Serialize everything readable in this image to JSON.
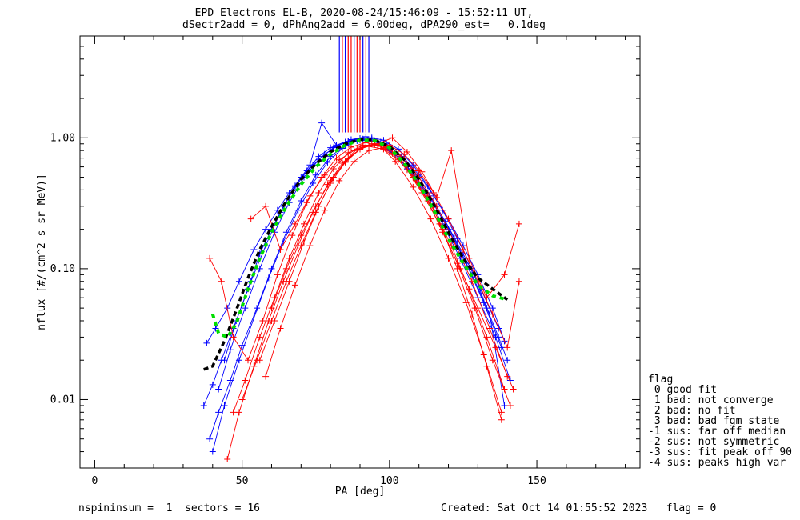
{
  "title": "EPD Electrons EL-B, 2020-08-24/15:46:09 - 15:52:11 UT,",
  "subtitle": "dSectr2add = 0, dPhAng2add = 6.00deg, dPA290_est=   0.1deg",
  "footer": {
    "left": "nspininsum =  1  sectors = 16",
    "right": "Created: Sat Oct 14 01:55:52 2023   flag = 0"
  },
  "flag_legend": {
    "title": "flag",
    "items": [
      " 0 good fit",
      " 1 bad: not converge",
      " 2 bad: no fit",
      " 3 bad: bad fgm state",
      "-1 sus: far off median",
      "-2 sus: not symmetric",
      "-3 sus: fit peak off 90",
      "-4 sus: peaks high var"
    ]
  },
  "chart_data": {
    "type": "line",
    "title": "EPD Electrons EL-B, 2020-08-24/15:46:09 - 15:52:11 UT,",
    "xlabel": "PA [deg]",
    "ylabel": "nflux [#/(cm^2 s sr MeV)]",
    "xlim": [
      -5,
      185
    ],
    "ylim": [
      0.003,
      6
    ],
    "yscale": "log",
    "x_ticks": [
      0,
      50,
      100,
      150
    ],
    "x_tick_labels": [
      "0",
      "50",
      "100",
      "150"
    ],
    "y_ticks": [
      0.01,
      0.1,
      1.0
    ],
    "y_tick_labels": [
      "0.01",
      "0.10",
      "1.00"
    ],
    "series": [
      {
        "color": "#0000ff",
        "x": [
          37,
          40,
          43,
          47,
          52,
          56,
          60,
          64,
          68,
          72,
          76,
          80,
          85,
          90,
          94,
          98,
          103,
          108,
          113,
          118,
          123,
          128,
          133,
          137,
          140
        ],
        "y": [
          0.009,
          0.013,
          0.02,
          0.035,
          0.07,
          0.13,
          0.2,
          0.3,
          0.42,
          0.56,
          0.72,
          0.84,
          0.93,
          0.99,
          1.0,
          0.96,
          0.82,
          0.62,
          0.43,
          0.28,
          0.17,
          0.1,
          0.05,
          0.03,
          0.02
        ]
      },
      {
        "color": "#0000ff",
        "x": [
          38,
          41,
          45,
          49,
          54,
          58,
          62,
          66,
          70,
          74,
          78,
          82,
          86,
          90,
          95,
          100,
          105,
          110,
          115,
          120,
          125,
          130,
          135,
          139
        ],
        "y": [
          0.027,
          0.035,
          0.05,
          0.08,
          0.14,
          0.2,
          0.28,
          0.38,
          0.5,
          0.62,
          0.75,
          0.86,
          0.94,
          0.97,
          0.95,
          0.86,
          0.7,
          0.52,
          0.36,
          0.24,
          0.15,
          0.09,
          0.05,
          0.028
        ]
      },
      {
        "color": "#0000ff",
        "x": [
          39,
          42,
          46,
          50,
          55,
          60,
          65,
          70,
          75,
          80,
          85,
          90,
          95,
          100,
          106,
          112,
          118,
          124,
          130,
          136,
          141
        ],
        "y": [
          0.005,
          0.008,
          0.014,
          0.026,
          0.05,
          0.1,
          0.19,
          0.33,
          0.52,
          0.72,
          0.88,
          0.96,
          0.94,
          0.8,
          0.58,
          0.38,
          0.22,
          0.12,
          0.06,
          0.03,
          0.014
        ]
      },
      {
        "color": "#0000ff",
        "x": [
          44,
          48,
          53,
          58,
          63,
          68,
          73,
          77,
          82,
          87,
          92,
          97,
          102,
          108,
          114,
          120,
          126,
          132,
          138
        ],
        "y": [
          0.02,
          0.04,
          0.08,
          0.15,
          0.27,
          0.43,
          0.62,
          1.3,
          0.88,
          0.97,
          1.02,
          0.93,
          0.75,
          0.52,
          0.34,
          0.2,
          0.11,
          0.055,
          0.025
        ]
      },
      {
        "color": "#0000ff",
        "x": [
          40,
          44,
          49,
          54,
          59,
          64,
          69,
          74,
          79,
          84,
          89,
          94,
          99,
          104,
          110,
          116,
          122,
          128,
          134,
          139
        ],
        "y": [
          0.004,
          0.009,
          0.02,
          0.042,
          0.085,
          0.16,
          0.28,
          0.45,
          0.65,
          0.83,
          0.95,
          0.98,
          0.9,
          0.72,
          0.5,
          0.3,
          0.17,
          0.09,
          0.045,
          0.009
        ]
      },
      {
        "color": "#0000ff",
        "x": [
          42,
          46,
          51,
          56,
          61,
          66,
          71,
          76,
          81,
          86,
          91,
          96,
          101,
          107,
          113,
          119,
          125,
          131,
          137
        ],
        "y": [
          0.012,
          0.024,
          0.05,
          0.1,
          0.19,
          0.32,
          0.5,
          0.68,
          0.84,
          0.94,
          0.98,
          0.93,
          0.78,
          0.57,
          0.38,
          0.23,
          0.13,
          0.07,
          0.035
        ]
      },
      {
        "color": "#ff0000",
        "x": [
          39,
          43,
          47,
          52,
          57,
          62,
          67,
          72,
          77,
          82,
          87,
          92,
          97,
          102,
          108,
          114,
          120,
          126,
          132,
          138
        ],
        "y": [
          0.12,
          0.08,
          0.03,
          0.02,
          0.04,
          0.09,
          0.18,
          0.32,
          0.5,
          0.7,
          0.85,
          0.92,
          0.86,
          0.66,
          0.42,
          0.24,
          0.12,
          0.055,
          0.022,
          0.008
        ]
      },
      {
        "color": "#ff0000",
        "x": [
          45,
          49,
          54,
          59,
          64,
          69,
          74,
          79,
          84,
          89,
          94,
          99,
          104,
          109,
          115,
          121,
          127,
          133,
          139
        ],
        "y": [
          0.0035,
          0.008,
          0.018,
          0.04,
          0.08,
          0.15,
          0.27,
          0.44,
          0.64,
          0.82,
          0.9,
          0.85,
          0.68,
          0.47,
          0.28,
          0.15,
          0.07,
          0.03,
          0.012
        ]
      },
      {
        "color": "#ff0000",
        "x": [
          47,
          51,
          56,
          61,
          66,
          71,
          76,
          81,
          86,
          91,
          96,
          101,
          106,
          111,
          117,
          123,
          129,
          135,
          141
        ],
        "y": [
          0.008,
          0.014,
          0.03,
          0.06,
          0.12,
          0.22,
          0.38,
          0.58,
          0.77,
          0.88,
          0.88,
          0.76,
          0.57,
          0.38,
          0.22,
          0.11,
          0.05,
          0.02,
          0.009
        ]
      },
      {
        "color": "#ff0000",
        "x": [
          53,
          58,
          63,
          68,
          73,
          78,
          83,
          88,
          93,
          98,
          103,
          108,
          113,
          118,
          124,
          130,
          136,
          142
        ],
        "y": [
          0.24,
          0.3,
          0.14,
          0.22,
          0.36,
          0.52,
          0.68,
          0.8,
          0.86,
          0.82,
          0.68,
          0.5,
          0.33,
          0.19,
          0.1,
          0.05,
          0.025,
          0.012
        ]
      },
      {
        "color": "#ff0000",
        "x": [
          50,
          55,
          60,
          65,
          70,
          75,
          80,
          85,
          90,
          95,
          100,
          105,
          110,
          116,
          122,
          128,
          134,
          140
        ],
        "y": [
          0.01,
          0.02,
          0.04,
          0.08,
          0.15,
          0.27,
          0.45,
          0.65,
          0.82,
          0.9,
          0.85,
          0.7,
          0.5,
          0.3,
          0.16,
          0.08,
          0.035,
          0.015
        ]
      },
      {
        "color": "#ff0000",
        "x": [
          56,
          61,
          66,
          71,
          76,
          81,
          86,
          91,
          96,
          101,
          106,
          111,
          116,
          121,
          127,
          133,
          139,
          144
        ],
        "y": [
          0.02,
          0.04,
          0.08,
          0.16,
          0.3,
          0.5,
          0.7,
          0.85,
          0.9,
          1.0,
          0.78,
          0.55,
          0.35,
          0.8,
          0.12,
          0.06,
          0.09,
          0.22
        ]
      },
      {
        "color": "#ff0000",
        "x": [
          58,
          63,
          68,
          73,
          78,
          83,
          88,
          93,
          98,
          103,
          108,
          113,
          118,
          123,
          128,
          133,
          138
        ],
        "y": [
          0.015,
          0.035,
          0.075,
          0.15,
          0.28,
          0.47,
          0.66,
          0.8,
          0.84,
          0.75,
          0.56,
          0.36,
          0.2,
          0.1,
          0.045,
          0.018,
          0.007
        ]
      },
      {
        "color": "#ff0000",
        "x": [
          60,
          65,
          70,
          75,
          80,
          85,
          90,
          95,
          100,
          105,
          110,
          115,
          120,
          125,
          130,
          135,
          140,
          144
        ],
        "y": [
          0.05,
          0.1,
          0.18,
          0.3,
          0.47,
          0.66,
          0.82,
          0.9,
          0.88,
          0.75,
          0.56,
          0.38,
          0.24,
          0.14,
          0.08,
          0.045,
          0.025,
          0.08
        ]
      }
    ],
    "average_fits": [
      {
        "name": "",
        "color": "#000000",
        "style": "dashed",
        "x": [
          37,
          40,
          44,
          48,
          52,
          56,
          60,
          65,
          70,
          75,
          80,
          85,
          90,
          95,
          100,
          105,
          110,
          115,
          120,
          125,
          130,
          135,
          140
        ],
        "y": [
          0.017,
          0.018,
          0.028,
          0.048,
          0.085,
          0.14,
          0.21,
          0.33,
          0.48,
          0.63,
          0.78,
          0.9,
          0.97,
          0.96,
          0.86,
          0.68,
          0.48,
          0.31,
          0.19,
          0.12,
          0.085,
          0.07,
          0.058
        ]
      },
      {
        "name": "",
        "color": "#00dd00",
        "style": "dashed",
        "x": [
          40,
          42,
          45,
          48,
          52,
          56,
          60,
          65,
          70,
          75,
          80,
          85,
          90,
          95,
          100,
          105,
          110,
          115,
          120,
          125,
          130,
          135,
          140
        ],
        "y": [
          0.045,
          0.032,
          0.03,
          0.038,
          0.07,
          0.12,
          0.19,
          0.3,
          0.44,
          0.6,
          0.75,
          0.88,
          0.96,
          0.95,
          0.84,
          0.64,
          0.44,
          0.28,
          0.17,
          0.11,
          0.075,
          0.062,
          0.058
        ]
      }
    ],
    "spike_bars": {
      "x": [
        83,
        84,
        85,
        86,
        87,
        88,
        89,
        90,
        91,
        92,
        93
      ],
      "colors": [
        "#0000ff",
        "#ff0000",
        "#0000ff",
        "#ff0000",
        "#ff0000",
        "#0000ff",
        "#ff0000",
        "#ff0000",
        "#0000ff",
        "#ff0000",
        "#0000ff"
      ],
      "y_low": 1.1,
      "y_high": 6
    }
  }
}
